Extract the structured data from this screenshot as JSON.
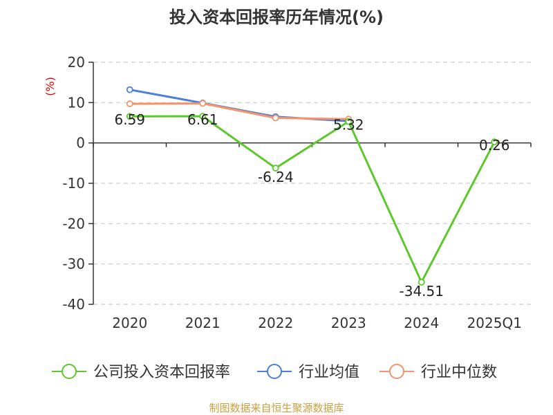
{
  "chart_data": {
    "type": "line",
    "title": "投入资本回报率历年情况(%)",
    "ylabel": "(%)",
    "xlabel": "",
    "ylim": [
      -40,
      20
    ],
    "yticks": [
      20,
      10,
      0,
      -10,
      -20,
      -30,
      -40
    ],
    "categories": [
      "2020",
      "2021",
      "2022",
      "2023",
      "2024",
      "2025Q1"
    ],
    "grid": true,
    "legend_position": "bottom",
    "series": [
      {
        "name": "公司投入资本回报率",
        "color": "#5cc82a",
        "values": [
          6.59,
          6.61,
          -6.24,
          5.32,
          -34.51,
          0.26
        ],
        "labels": [
          "6.59",
          "6.61",
          "-6.24",
          "5.32",
          "-34.51",
          "0.26"
        ]
      },
      {
        "name": "行业均值",
        "color": "#4a7fd8",
        "values": [
          13.2,
          9.9,
          6.5,
          5.4,
          null,
          null
        ]
      },
      {
        "name": "行业中位数",
        "color": "#f5946a",
        "values": [
          9.7,
          9.8,
          6.2,
          5.9,
          null,
          null
        ]
      }
    ]
  },
  "source": "制图数据来自恒生聚源数据库"
}
